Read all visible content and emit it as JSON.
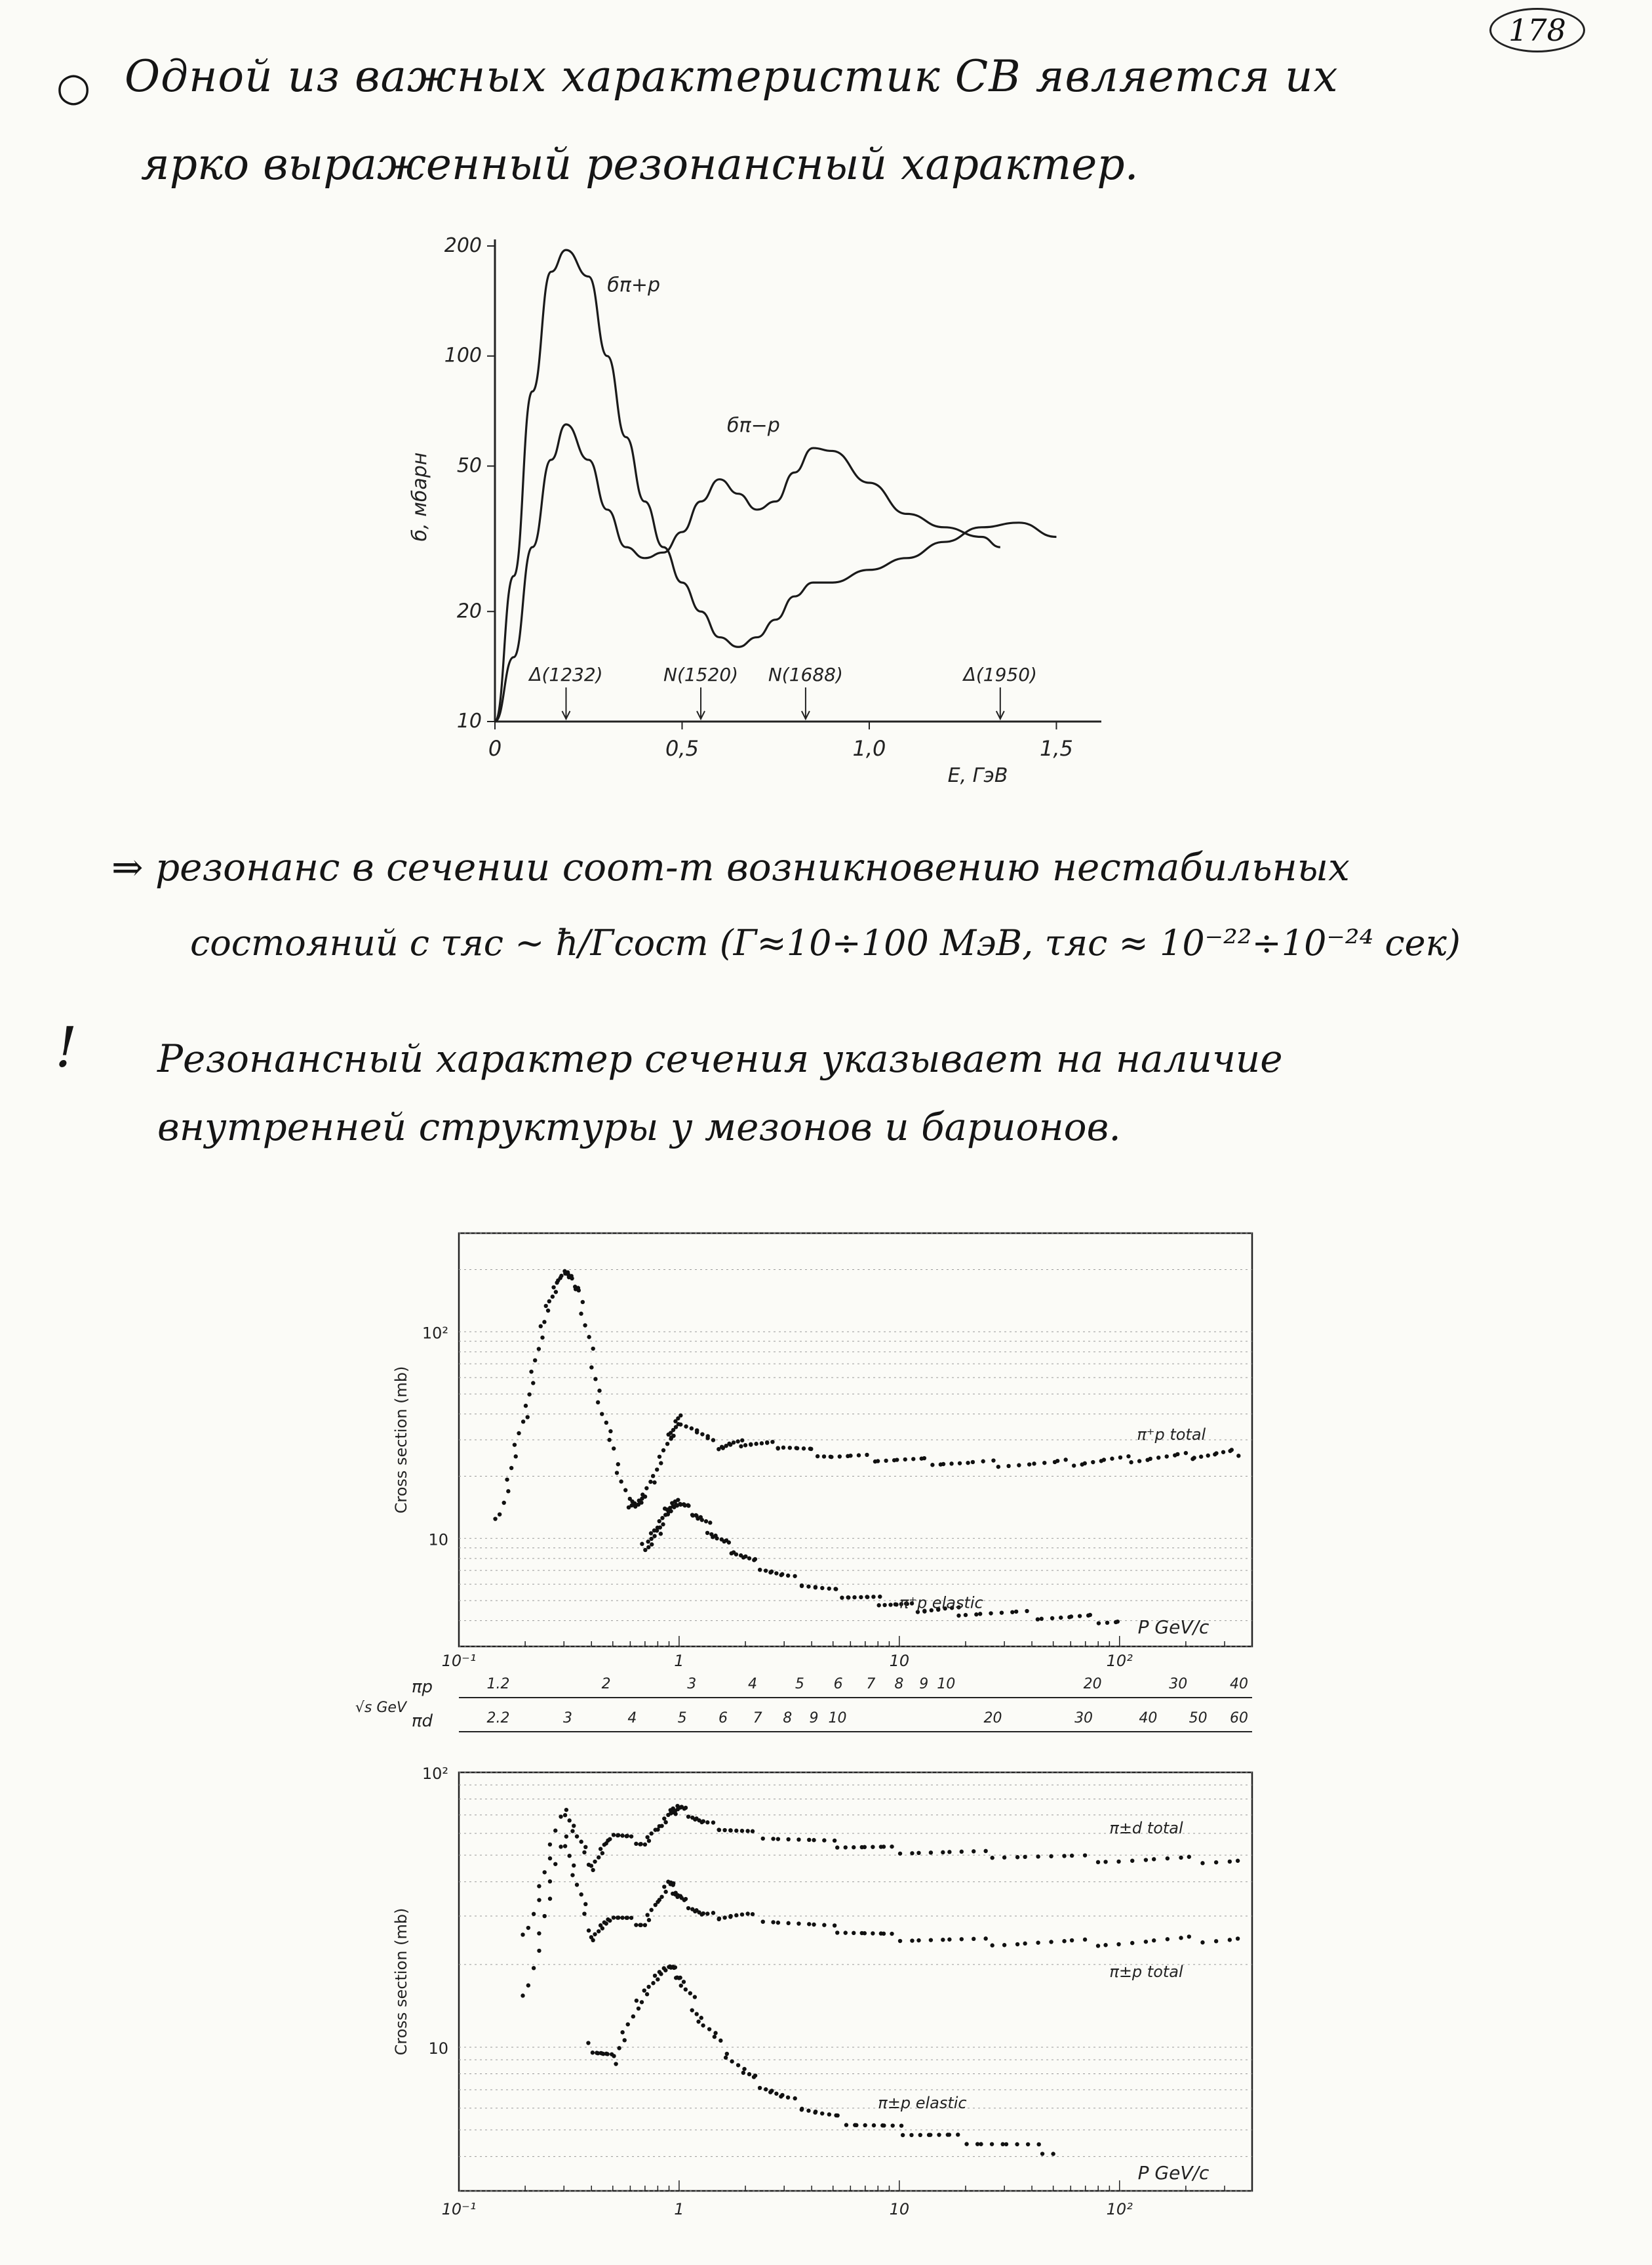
{
  "page_number": "178",
  "text": {
    "line1_bullet": "○",
    "line1": "Одной из важных характеристик СВ является их",
    "line2": "ярко выраженный резонансный характер.",
    "line3": "⇒ резонанс в сечении соот-т возникновению нестабильных",
    "line4": "состояний с τяс ~ ħ/Гсост (Г≈10÷100 МэВ, τяс ≈ 10⁻²²÷10⁻²⁴ сек)",
    "line5_mark": "!",
    "line5": "Резонансный характер сечения указывает на наличие",
    "line6": "внутренней структуры у мезонов и барионов."
  },
  "chart_data": [
    {
      "type": "line",
      "ylabel": "б, мбарн",
      "xlabel": "E, ГэВ",
      "x_ticks": [
        "0",
        "0,5",
        "1,0",
        "1,5"
      ],
      "y_ticks": [
        "10",
        "20",
        "50",
        "100",
        "200"
      ],
      "xlim": [
        0,
        1.55
      ],
      "ylim": [
        10,
        200
      ],
      "y_scale": "log",
      "series": [
        {
          "name": "бπ+p",
          "x": [
            0,
            0.05,
            0.1,
            0.15,
            0.19,
            0.25,
            0.3,
            0.35,
            0.4,
            0.45,
            0.5,
            0.55,
            0.6,
            0.65,
            0.7,
            0.75,
            0.8,
            0.85,
            0.9,
            1.0,
            1.1,
            1.2,
            1.3,
            1.4,
            1.5
          ],
          "y": [
            10,
            25,
            80,
            170,
            195,
            165,
            100,
            60,
            40,
            30,
            24,
            20,
            17,
            16,
            17,
            19,
            22,
            24,
            24,
            26,
            28,
            31,
            34,
            35,
            32
          ]
        },
        {
          "name": "бπ−p",
          "x": [
            0,
            0.05,
            0.1,
            0.15,
            0.19,
            0.25,
            0.3,
            0.35,
            0.4,
            0.45,
            0.5,
            0.55,
            0.6,
            0.65,
            0.7,
            0.75,
            0.8,
            0.85,
            0.9,
            1.0,
            1.1,
            1.2,
            1.3,
            1.35
          ],
          "y": [
            10,
            15,
            30,
            52,
            65,
            52,
            38,
            30,
            28,
            29,
            33,
            40,
            46,
            42,
            38,
            40,
            48,
            56,
            55,
            45,
            37,
            34,
            32,
            30
          ]
        }
      ],
      "annotations": [
        {
          "label": "Δ(1232)",
          "x": 0.19
        },
        {
          "label": "N(1520)",
          "x": 0.55
        },
        {
          "label": "N(1688)",
          "x": 0.83
        },
        {
          "label": "Δ(1950)",
          "x": 1.35
        }
      ]
    },
    {
      "type": "scatter",
      "ylabel": "Cross section (mb)",
      "xlabel": "P_lab GeV/c",
      "x_scale": "log",
      "y_scale": "log",
      "xlim": [
        0.1,
        400
      ],
      "ylim": [
        3,
        300
      ],
      "x_ticks": [
        "10⁻¹",
        "1",
        "10",
        "10²"
      ],
      "y_ticks": [
        "10",
        "10²"
      ],
      "series": [
        {
          "name": "π⁺p total",
          "x": [
            0.15,
            0.2,
            0.25,
            0.3,
            0.35,
            0.45,
            0.6,
            0.7,
            0.9,
            1.0,
            1.5,
            2.0,
            3,
            5,
            10,
            20,
            50,
            100,
            200,
            350
          ],
          "y": [
            12,
            40,
            130,
            200,
            160,
            40,
            14,
            16,
            30,
            38,
            28,
            29,
            28,
            25,
            24,
            23,
            23,
            24,
            25,
            26
          ]
        },
        {
          "name": "π⁺p elastic",
          "x": [
            0.7,
            0.8,
            0.9,
            1.0,
            1.2,
            1.5,
            2,
            3,
            5,
            8,
            12,
            20,
            50,
            100
          ],
          "y": [
            9,
            11,
            14,
            15,
            13,
            10,
            8,
            6.5,
            5.5,
            5,
            4.6,
            4.4,
            4.2,
            4.0
          ]
        }
      ],
      "labels": [
        "π⁺p total",
        "π⁺p elastic"
      ],
      "secondary_axes": [
        {
          "name": "πp",
          "unit": "√s GeV",
          "ticks": [
            "1.2",
            "2",
            "3",
            "4",
            "5",
            "6",
            "7",
            "8",
            "9",
            "10",
            "20",
            "30",
            "40"
          ]
        },
        {
          "name": "πd",
          "ticks": [
            "2.2",
            "3",
            "4",
            "5",
            "6",
            "7",
            "8",
            "9",
            "10",
            "20",
            "30",
            "40",
            "50",
            "60"
          ]
        }
      ]
    },
    {
      "type": "scatter",
      "ylabel": "Cross section (mb)",
      "xlabel": "P_lab GeV/c",
      "x_scale": "log",
      "y_scale": "log",
      "xlim": [
        0.1,
        400
      ],
      "ylim": [
        3,
        100
      ],
      "x_ticks": [
        "10⁻¹",
        "1",
        "10",
        "10²"
      ],
      "y_ticks": [
        "10",
        "10²"
      ],
      "series": [
        {
          "name": "π±d total",
          "x": [
            0.2,
            0.3,
            0.4,
            0.5,
            0.7,
            0.9,
            1.0,
            1.3,
            2,
            5,
            10,
            30,
            100,
            350
          ],
          "y": [
            25,
            75,
            45,
            60,
            55,
            70,
            75,
            65,
            60,
            55,
            52,
            50,
            48,
            48
          ]
        },
        {
          "name": "π±p total",
          "x": [
            0.2,
            0.3,
            0.4,
            0.5,
            0.7,
            0.9,
            1.0,
            1.3,
            2,
            5,
            10,
            30,
            100,
            350
          ],
          "y": [
            15,
            60,
            25,
            30,
            28,
            40,
            35,
            30,
            30,
            27,
            25,
            24,
            24,
            25
          ]
        },
        {
          "name": "π±p elastic",
          "x": [
            0.4,
            0.5,
            0.7,
            0.9,
            1.0,
            1.3,
            2,
            3,
            5,
            10,
            20,
            50
          ],
          "y": [
            10,
            9,
            16,
            20,
            18,
            12,
            8,
            6.5,
            5.5,
            5,
            4.6,
            4.2
          ]
        }
      ],
      "labels": [
        "π±d total",
        "π±p total",
        "π±p elastic"
      ]
    }
  ]
}
